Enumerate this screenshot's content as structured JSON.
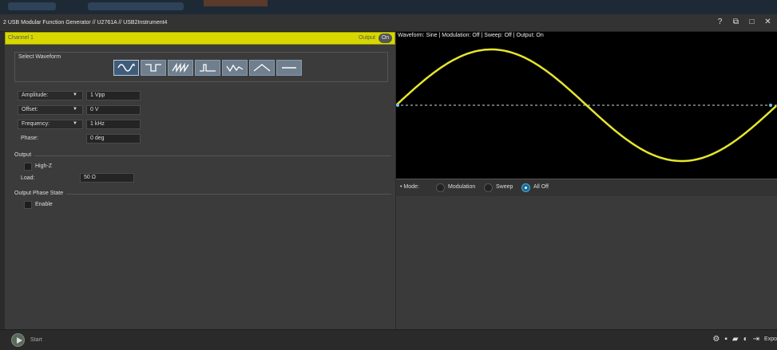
{
  "window": {
    "title": "2 USB Modular Function Generator // U2761A // USB2Instrument4",
    "icons": [
      "help-icon",
      "popout-icon",
      "maximize-icon",
      "close-icon"
    ]
  },
  "channel": {
    "label": "Channel 1",
    "output_label": "Output",
    "output_state": "On",
    "accent_color": "#d8d800"
  },
  "waveform": {
    "legend": "Select Waveform",
    "selected": "sine",
    "buttons": [
      "sine",
      "square",
      "sawtooth",
      "pulse",
      "arbitrary",
      "triangle",
      "dc"
    ]
  },
  "params": {
    "amplitude": {
      "label": "Amplitude:",
      "value": "1 Vpp"
    },
    "offset": {
      "label": "Offset:",
      "value": "0 V"
    },
    "frequency": {
      "label": "Frequency:",
      "value": "1 kHz"
    },
    "phase": {
      "label": "Phase:",
      "value": "0 deg"
    }
  },
  "output": {
    "section": "Output",
    "highz_label": "High-Z",
    "load_label": "Load:",
    "load_value": "50 Ω"
  },
  "phase_state": {
    "section": "Output Phase State",
    "enable_label": "Enable"
  },
  "scope": {
    "info": "Waveform: Sine | Modulation: Off | Sweep: Off | Output: On",
    "trace_color": "#e6e62e",
    "cycles_shown": 1
  },
  "mode": {
    "label": "Mode:",
    "options": [
      "Modulation",
      "Sweep",
      "All Off"
    ],
    "selected": "All Off"
  },
  "footer": {
    "start_label": "Start",
    "export_label": "Expo",
    "icons": [
      "settings-icon",
      "save-icon",
      "open-folder-icon",
      "info-icon",
      "export-icon"
    ]
  }
}
